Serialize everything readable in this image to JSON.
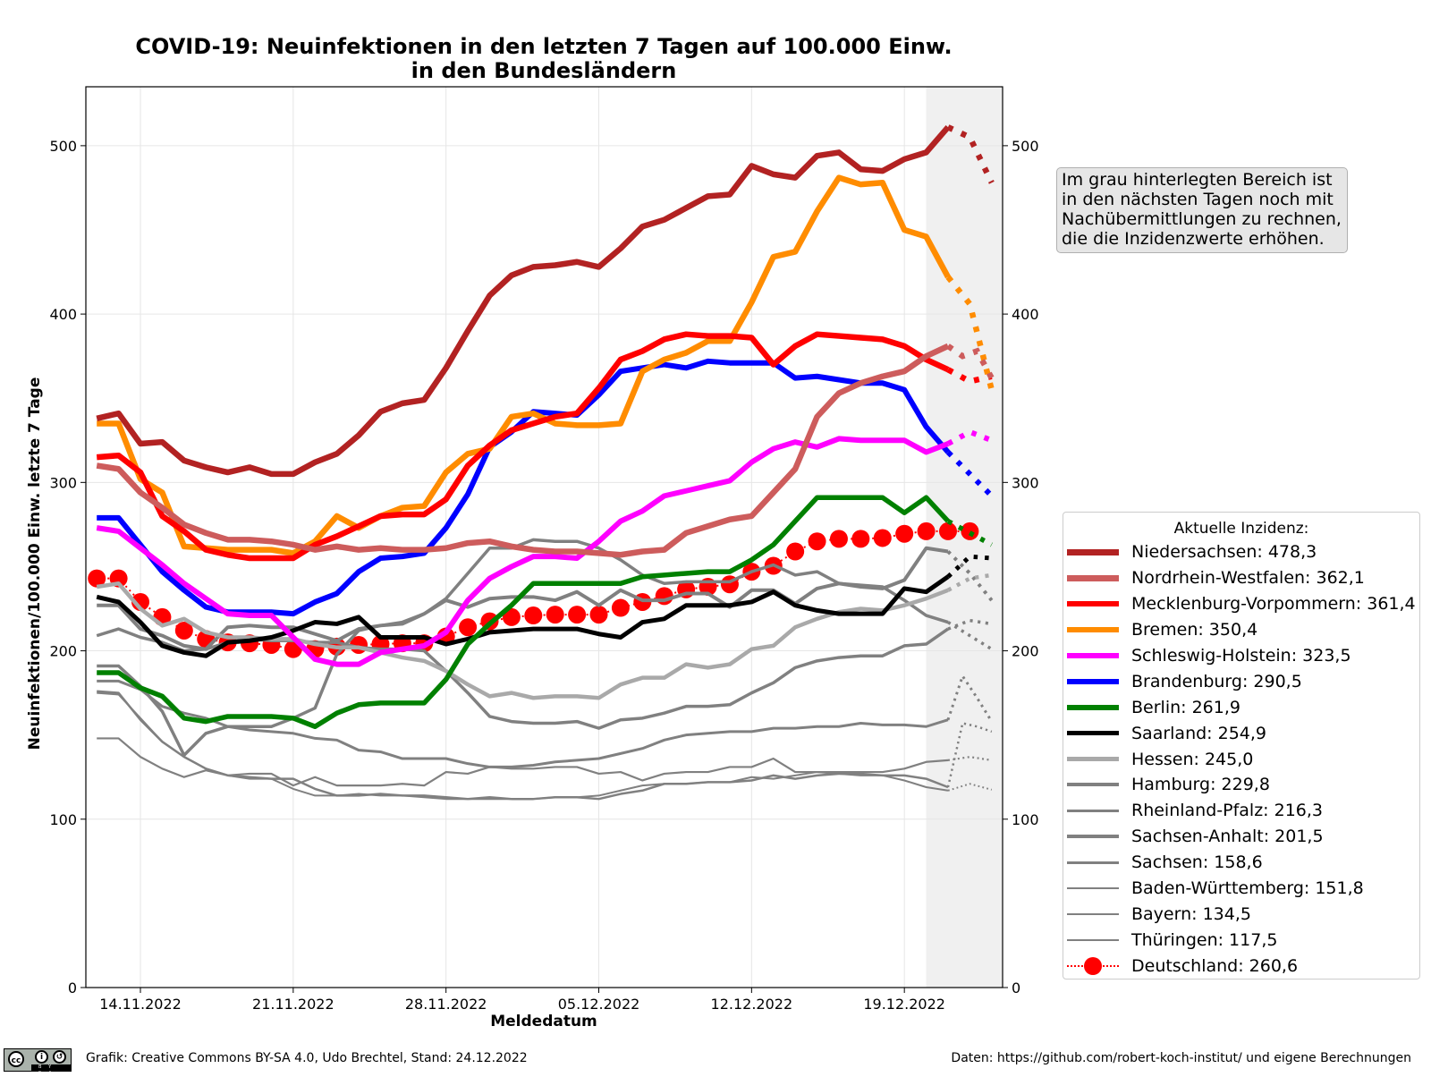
{
  "footer": {
    "left": "Grafik: Creative Commons BY-SA 4.0, Udo Brechtel, Stand: 24.12.2022",
    "right": "Daten: https://github.com/robert-koch-institut/ und eigene Berechnungen",
    "license_icon": "cc-by-sa-icon",
    "license_labels": [
      "cc",
      "BY",
      "SA"
    ]
  },
  "note": "Im grau hinterlegten Bereich ist\nin den nächsten Tagen noch mit\nNachübermittlungen zu rechnen,\ndie die Inzidenzwerte erhöhen.",
  "legend_title": "Aktuelle Inzidenz:",
  "chart_data": {
    "type": "line",
    "title": "COVID-19: Neuinfektionen in den letzten 7 Tagen auf 100.000 Einw.",
    "subtitle": "in den Bundesländern",
    "xlabel": "Meldedatum",
    "ylabel": "Neuinfektionen/100.000 Einw. letzte 7 Tage",
    "ylim": [
      0,
      535
    ],
    "yticks": [
      0,
      100,
      200,
      300,
      400,
      500
    ],
    "x_start": "12.11.2022",
    "x_end_solid": "21.12.2022",
    "x_end_dotted": "23.12.2022",
    "x_range_days": [
      -0.5,
      41.5
    ],
    "xticks": [
      {
        "day": 2,
        "label": "14.11.2022"
      },
      {
        "day": 9,
        "label": "21.11.2022"
      },
      {
        "day": 16,
        "label": "28.11.2022"
      },
      {
        "day": 23,
        "label": "05.12.2022"
      },
      {
        "day": 30,
        "label": "12.12.2022"
      },
      {
        "day": 37,
        "label": "19.12.2022"
      }
    ],
    "shaded_region_start_day": 38,
    "grid": true,
    "legend_placement": "right",
    "series": [
      {
        "name": "Niedersachsen",
        "current": "478,3",
        "color": "#b22222",
        "width": 6.5,
        "values": [
          338,
          341,
          323,
          324,
          313,
          309,
          306,
          309,
          305,
          305,
          312,
          317,
          328,
          342,
          347,
          349,
          368,
          390,
          411,
          423,
          428,
          429,
          431,
          428,
          439,
          452,
          456,
          463,
          470,
          471,
          488,
          483,
          481,
          494,
          496,
          486,
          485,
          492,
          496,
          511
        ],
        "projection": [
          505,
          478
        ]
      },
      {
        "name": "Nordrhein-Westfalen",
        "current": "362,1",
        "color": "#cd5c5c",
        "width": 6.5,
        "values": [
          310,
          308,
          294,
          285,
          275,
          270,
          266,
          266,
          265,
          263,
          260,
          262,
          260,
          261,
          260,
          260,
          261,
          264,
          265,
          262,
          260,
          259,
          259,
          258,
          257,
          259,
          260,
          270,
          274,
          278,
          280,
          294,
          308,
          339,
          353,
          359,
          363,
          366,
          375,
          381
        ],
        "projection": [
          375,
          378,
          362
        ]
      },
      {
        "name": "Mecklenburg-Vorpommern",
        "current": "361,4",
        "color": "#ff0000",
        "width": 6.5,
        "values": [
          315,
          316,
          306,
          280,
          271,
          260,
          257,
          255,
          255,
          255,
          263,
          268,
          274,
          280,
          281,
          281,
          290,
          310,
          322,
          331,
          335,
          339,
          341,
          356,
          373,
          378,
          385,
          388,
          387,
          387,
          386,
          370,
          381,
          388,
          387,
          386,
          385,
          381,
          373,
          367
        ],
        "projection": [
          360,
          363
        ]
      },
      {
        "name": "Bremen",
        "current": "350,4",
        "color": "#ff8c00",
        "width": 6.5,
        "values": [
          335,
          335,
          302,
          294,
          262,
          261,
          260,
          260,
          260,
          258,
          265,
          280,
          273,
          280,
          285,
          286,
          306,
          317,
          320,
          339,
          341,
          335,
          334,
          334,
          335,
          366,
          373,
          377,
          384,
          384,
          407,
          434,
          437,
          461,
          481,
          477,
          478,
          450,
          446,
          422
        ],
        "projection": [
          406,
          355
        ]
      },
      {
        "name": "Schleswig-Holstein",
        "current": "323,5",
        "color": "#ff00ff",
        "width": 6,
        "values": [
          273,
          271,
          261,
          251,
          240,
          231,
          222,
          221,
          221,
          208,
          195,
          192,
          192,
          199,
          201,
          203,
          211,
          230,
          243,
          250,
          256,
          256,
          255,
          265,
          277,
          283,
          292,
          295,
          298,
          301,
          312,
          320,
          324,
          321,
          326,
          325,
          325,
          325,
          318,
          323
        ],
        "projection": [
          330,
          325
        ]
      },
      {
        "name": "Brandenburg",
        "current": "290,5",
        "color": "#0000ff",
        "width": 6,
        "values": [
          279,
          279,
          263,
          247,
          236,
          226,
          223,
          223,
          223,
          222,
          229,
          234,
          247,
          255,
          256,
          258,
          273,
          293,
          321,
          330,
          342,
          341,
          340,
          352,
          366,
          368,
          370,
          368,
          372,
          371,
          371,
          371,
          362,
          363,
          361,
          359,
          359,
          355,
          333,
          318
        ],
        "projection": [
          305,
          292
        ]
      },
      {
        "name": "Berlin",
        "current": "261,9",
        "color": "#008000",
        "width": 5.5,
        "values": [
          187,
          187,
          178,
          173,
          160,
          158,
          161,
          161,
          161,
          160,
          155,
          163,
          168,
          169,
          169,
          169,
          183,
          204,
          216,
          227,
          240,
          240,
          240,
          240,
          240,
          244,
          245,
          246,
          247,
          247,
          254,
          263,
          277,
          291,
          291,
          291,
          291,
          282,
          291,
          277
        ],
        "projection": [
          270,
          263
        ]
      },
      {
        "name": "Saarland",
        "current": "254,9",
        "color": "#000000",
        "width": 5,
        "values": [
          232,
          229,
          217,
          203,
          199,
          197,
          205,
          206,
          208,
          212,
          217,
          216,
          220,
          208,
          208,
          208,
          204,
          207,
          211,
          212,
          213,
          213,
          213,
          210,
          208,
          217,
          219,
          227,
          227,
          227,
          229,
          235,
          227,
          224,
          222,
          222,
          222,
          237,
          235,
          244
        ],
        "projection": [
          256,
          255
        ]
      },
      {
        "name": "Hessen",
        "current": "245,0",
        "color": "#a9a9a9",
        "width": 4.5,
        "values": [
          238,
          240,
          225,
          215,
          219,
          211,
          208,
          208,
          207,
          207,
          204,
          202,
          202,
          199,
          196,
          194,
          188,
          180,
          173,
          175,
          172,
          173,
          173,
          172,
          180,
          184,
          184,
          192,
          190,
          192,
          201,
          203,
          214,
          219,
          223,
          225,
          224,
          227,
          231,
          236
        ],
        "projection": [
          243,
          245
        ]
      },
      {
        "name": "Hamburg",
        "current": "229,8",
        "color": "#808080",
        "width": 4,
        "values": [
          227,
          227,
          213,
          209,
          203,
          201,
          214,
          215,
          214,
          214,
          210,
          206,
          213,
          215,
          216,
          222,
          230,
          226,
          231,
          232,
          232,
          230,
          235,
          227,
          236,
          230,
          230,
          234,
          234,
          226,
          236,
          236,
          228,
          237,
          240,
          238,
          237,
          242,
          261,
          259
        ],
        "projection": [
          246,
          230
        ]
      },
      {
        "name": "Rheinland-Pfalz",
        "current": "216,3",
        "color": "#808080",
        "width": 3.5,
        "values": [
          209,
          213,
          208,
          205,
          200,
          201,
          205,
          207,
          206,
          206,
          205,
          205,
          202,
          201,
          201,
          200,
          188,
          175,
          161,
          158,
          157,
          157,
          158,
          154,
          159,
          160,
          163,
          167,
          167,
          168,
          175,
          181,
          190,
          194,
          196,
          197,
          197,
          203,
          204,
          213
        ],
        "projection": [
          218,
          216
        ]
      },
      {
        "name": "Sachsen-Anhalt",
        "current": "201,5",
        "color": "#808080",
        "width": 3.5,
        "values": [
          191,
          191,
          179,
          164,
          138,
          151,
          155,
          155,
          155,
          160,
          166,
          198,
          212,
          215,
          217,
          222,
          231,
          246,
          261,
          261,
          266,
          265,
          265,
          261,
          254,
          245,
          240,
          241,
          241,
          241,
          247,
          251,
          245,
          247,
          240,
          239,
          238,
          230,
          221,
          217
        ],
        "projection": [
          209,
          201
        ]
      },
      {
        "name": "Sachsen",
        "current": "158,6",
        "color": "#808080",
        "width": 3,
        "values": [
          182,
          182,
          177,
          167,
          163,
          160,
          155,
          153,
          152,
          151,
          148,
          147,
          141,
          140,
          136,
          136,
          136,
          133,
          131,
          131,
          132,
          134,
          135,
          136,
          139,
          142,
          147,
          150,
          151,
          152,
          152,
          154,
          154,
          155,
          155,
          157,
          156,
          156,
          155,
          159
        ],
        "projection": [
          185,
          172,
          158
        ]
      },
      {
        "name": "Baden-Württemberg",
        "current": "151,8",
        "color": "#808080",
        "width": 2.5,
        "values": [
          176,
          175,
          159,
          146,
          137,
          130,
          126,
          125,
          124,
          124,
          118,
          114,
          114,
          115,
          114,
          114,
          113,
          112,
          113,
          112,
          112,
          113,
          113,
          112,
          115,
          117,
          121,
          121,
          122,
          122,
          123,
          126,
          124,
          126,
          127,
          127,
          126,
          126,
          124,
          119
        ],
        "projection": [
          157,
          155,
          152
        ]
      },
      {
        "name": "Bayern",
        "current": "134,5",
        "color": "#808080",
        "width": 2.2,
        "values": [
          148,
          148,
          137,
          130,
          125,
          129,
          126,
          127,
          127,
          120,
          125,
          120,
          120,
          120,
          121,
          120,
          128,
          127,
          131,
          130,
          130,
          131,
          131,
          127,
          128,
          123,
          127,
          128,
          128,
          131,
          131,
          136,
          128,
          128,
          128,
          128,
          128,
          130,
          134,
          135
        ],
        "projection": [
          137,
          135
        ]
      },
      {
        "name": "Thüringen",
        "current": "117,5",
        "color": "#808080",
        "width": 2,
        "values": [
          175,
          174,
          160,
          146,
          137,
          130,
          126,
          124,
          124,
          118,
          114,
          114,
          115,
          114,
          114,
          113,
          112,
          112,
          112,
          112,
          112,
          113,
          113,
          114,
          117,
          120,
          121,
          121,
          122,
          122,
          125,
          124,
          126,
          128,
          127,
          126,
          126,
          123,
          119,
          117
        ],
        "projection": [
          121,
          117.5
        ]
      },
      {
        "name": "Deutschland",
        "current": "260,6",
        "color": "#ff0000",
        "width": 2,
        "marker": "circle",
        "values": [
          243,
          243,
          229,
          220,
          212,
          207,
          205,
          204.5,
          203.5,
          201,
          201,
          202.5,
          203.5,
          204,
          204.5,
          204.5,
          208.5,
          214,
          217.5,
          220,
          221,
          221.5,
          221.5,
          221.5,
          225.5,
          229,
          232.5,
          236.5,
          238,
          239.5,
          247,
          250.5,
          259,
          265,
          266.5,
          266.5,
          267,
          269.5,
          271,
          271
        ],
        "projection": [
          271
        ]
      }
    ]
  }
}
